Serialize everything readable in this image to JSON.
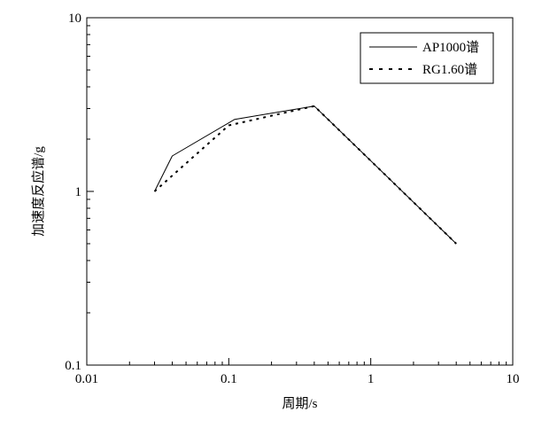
{
  "chart_data": {
    "type": "line",
    "title": "",
    "xlabel": "周期/s",
    "ylabel": "加速度反应谱/g",
    "xscale": "log",
    "yscale": "log",
    "xlim": [
      0.01,
      10
    ],
    "ylim": [
      0.1,
      10
    ],
    "grid": false,
    "legend_position": "top-right",
    "x_ticks": [
      {
        "value": 0.01,
        "label": "0.01"
      },
      {
        "value": 0.1,
        "label": "0.1"
      },
      {
        "value": 1,
        "label": "1"
      },
      {
        "value": 10,
        "label": "10"
      }
    ],
    "y_ticks": [
      {
        "value": 0.1,
        "label": "0.1"
      },
      {
        "value": 1,
        "label": "1"
      },
      {
        "value": 10,
        "label": "10"
      }
    ],
    "series": [
      {
        "name": "AP1000谱",
        "line_style": "solid",
        "color": "#000000",
        "x": [
          0.03,
          0.04,
          0.11,
          0.4,
          4.0
        ],
        "y": [
          1.0,
          1.6,
          2.6,
          3.1,
          0.5
        ]
      },
      {
        "name": "RG1.60谱",
        "line_style": "dotted",
        "color": "#000000",
        "x": [
          0.03,
          0.1,
          0.4,
          4.0
        ],
        "y": [
          1.0,
          2.4,
          3.1,
          0.5
        ]
      }
    ]
  }
}
